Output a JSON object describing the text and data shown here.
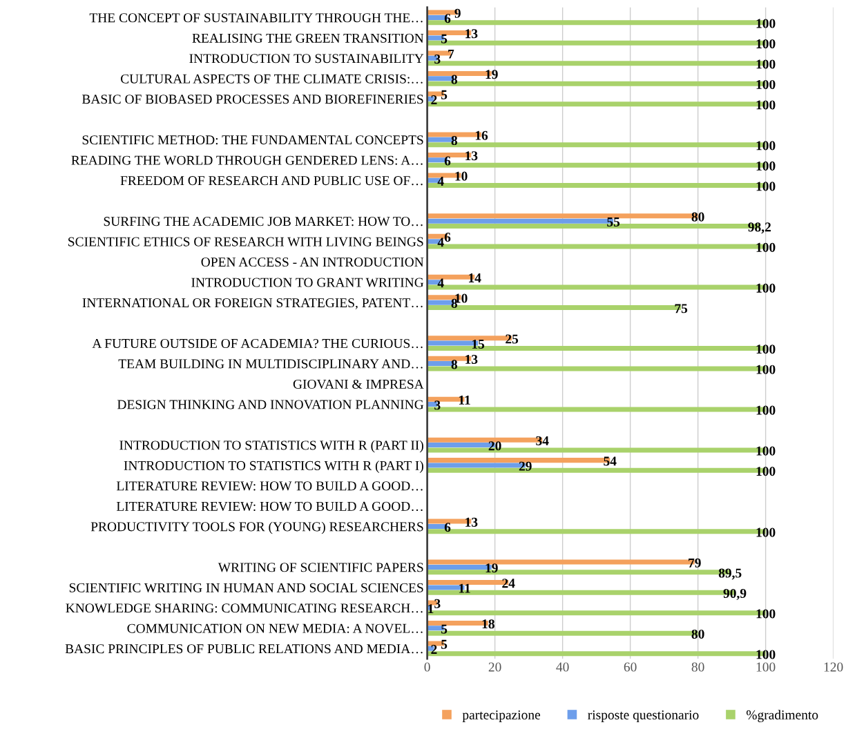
{
  "chart_data": {
    "type": "bar",
    "orientation": "horizontal",
    "categories": [
      "THE CONCEPT OF SUSTAINABILITY THROUGH THE…",
      "REALISING THE GREEN TRANSITION",
      "INTRODUCTION TO SUSTAINABILITY",
      "CULTURAL ASPECTS OF THE CLIMATE CRISIS:…",
      "BASIC OF BIOBASED PROCESSES AND BIOREFINERIES",
      null,
      "SCIENTIFIC METHOD: THE FUNDAMENTAL CONCEPTS",
      "READING THE WORLD THROUGH GENDERED LENS: A…",
      "FREEDOM OF RESEARCH AND PUBLIC USE OF…",
      null,
      "SURFING THE ACADEMIC JOB MARKET: HOW TO…",
      "SCIENTIFIC ETHICS OF RESEARCH WITH LIVING BEINGS",
      "OPEN ACCESS - AN INTRODUCTION",
      "INTRODUCTION TO GRANT WRITING",
      "INTERNATIONAL OR FOREIGN STRATEGIES, PATENT…",
      null,
      "A FUTURE OUTSIDE OF ACADEMIA? THE CURIOUS…",
      "TEAM BUILDING IN MULTIDISCIPLINARY AND…",
      "GIOVANI & IMPRESA",
      "DESIGN THINKING AND INNOVATION PLANNING",
      null,
      "INTRODUCTION TO STATISTICS WITH R (PART II)",
      "INTRODUCTION TO STATISTICS WITH R (PART I)",
      "LITERATURE REVIEW: HOW TO BUILD A GOOD…",
      "LITERATURE REVIEW: HOW TO BUILD A GOOD…",
      "PRODUCTIVITY TOOLS FOR (YOUNG) RESEARCHERS",
      null,
      "WRITING OF SCIENTIFIC PAPERS",
      "SCIENTIFIC WRITING IN HUMAN AND SOCIAL SCIENCES",
      "KNOWLEDGE SHARING: COMMUNICATING RESEARCH…",
      "COMMUNICATION ON NEW MEDIA: A NOVEL…",
      "BASIC PRINCIPLES OF PUBLIC RELATIONS AND MEDIA…"
    ],
    "series": [
      {
        "name": "partecipazione",
        "color": "#f4a15d",
        "values": [
          9,
          13,
          7,
          19,
          5,
          null,
          16,
          13,
          10,
          null,
          80,
          6,
          null,
          14,
          10,
          null,
          25,
          13,
          null,
          11,
          null,
          34,
          54,
          null,
          null,
          13,
          null,
          79,
          24,
          3,
          18,
          5
        ],
        "value_labels": [
          "9",
          "13",
          "7",
          "19",
          "5",
          null,
          "16",
          "13",
          "10",
          null,
          "80",
          "6",
          null,
          "14",
          "10",
          null,
          "25",
          "13",
          null,
          "11",
          null,
          "34",
          "54",
          null,
          null,
          "13",
          null,
          "79",
          "24",
          "3",
          "18",
          "5"
        ]
      },
      {
        "name": "risposte questionario",
        "color": "#6d9eeb",
        "values": [
          6,
          5,
          3,
          8,
          2,
          null,
          8,
          6,
          4,
          null,
          55,
          4,
          null,
          4,
          8,
          null,
          15,
          8,
          null,
          3,
          null,
          20,
          29,
          null,
          null,
          6,
          null,
          19,
          11,
          1,
          5,
          2
        ],
        "value_labels": [
          "6",
          "5",
          "3",
          "8",
          "2",
          null,
          "8",
          "6",
          "4",
          null,
          "55",
          "4",
          null,
          "4",
          "8",
          null,
          "15",
          "8",
          null,
          "3",
          null,
          "20",
          "29",
          null,
          null,
          "6",
          null,
          "19",
          "11",
          "1",
          "5",
          "2"
        ]
      },
      {
        "name": "%gradimento",
        "color": "#a9d26b",
        "values": [
          100,
          100,
          100,
          100,
          100,
          null,
          100,
          100,
          100,
          null,
          98.2,
          100,
          null,
          100,
          75,
          null,
          100,
          100,
          null,
          100,
          null,
          100,
          100,
          null,
          null,
          100,
          null,
          89.5,
          90.9,
          100,
          80,
          100
        ],
        "value_labels": [
          "100",
          "100",
          "100",
          "100",
          "100",
          null,
          "100",
          "100",
          "100",
          null,
          "98,2",
          "100",
          null,
          "100",
          "75",
          null,
          "100",
          "100",
          null,
          "100",
          null,
          "100",
          "100",
          null,
          null,
          "100",
          null,
          "89,5",
          "90,9",
          "100",
          "80",
          "100"
        ]
      }
    ],
    "xlim": [
      0,
      120
    ],
    "xticks": [
      0,
      20,
      40,
      60,
      80,
      100,
      120
    ],
    "grid": "x",
    "legend": "bottom"
  }
}
